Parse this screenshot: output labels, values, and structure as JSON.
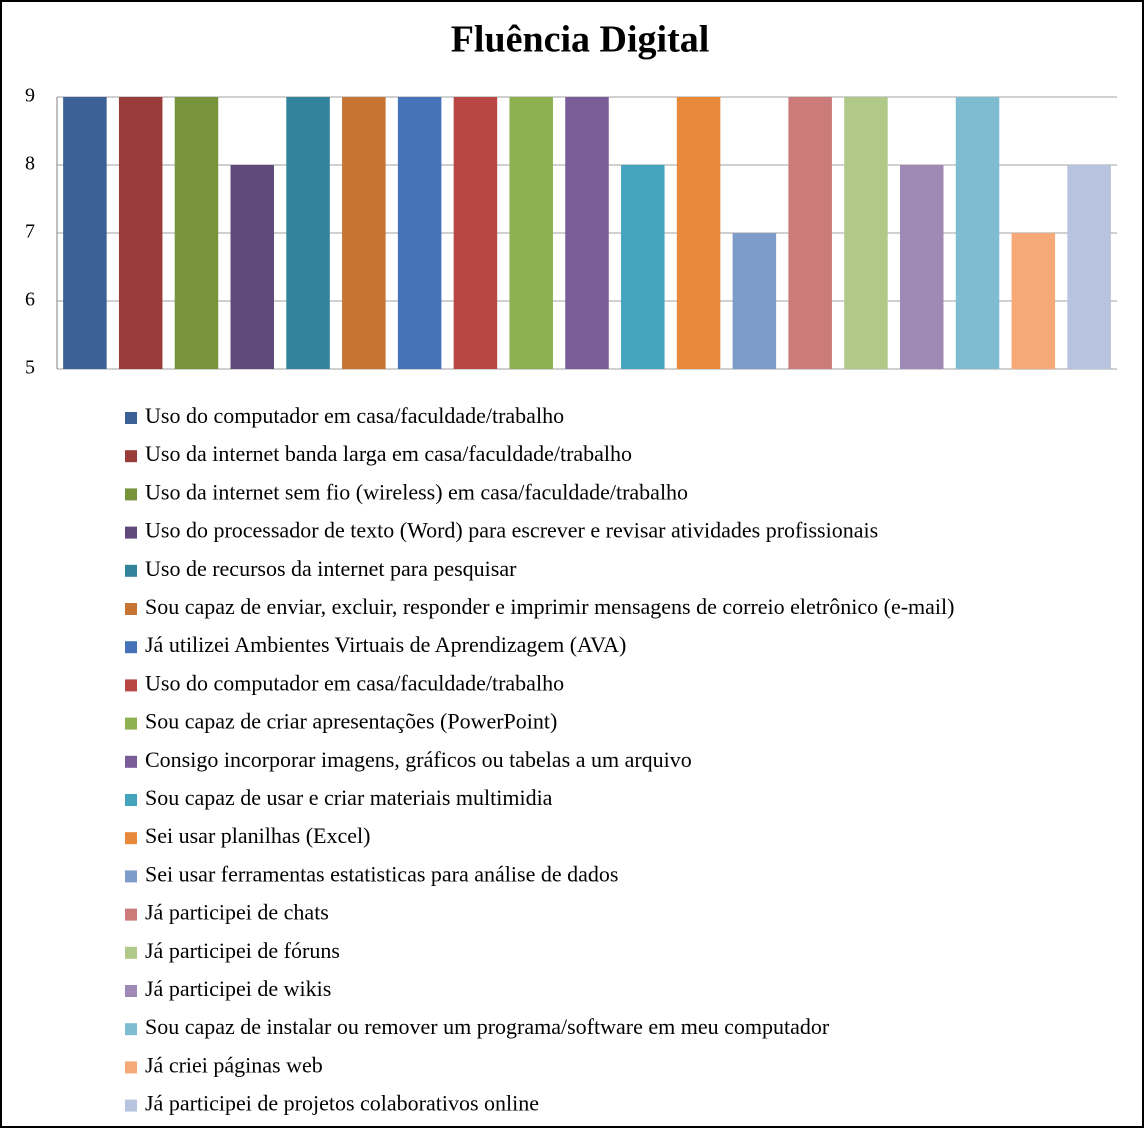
{
  "chart_data": {
    "type": "bar",
    "title": "Fluência Digital",
    "categories": [
      null
    ],
    "series": [
      {
        "name": "Uso do computador em casa/faculdade/trabalho",
        "color": "#3c6196",
        "values": [
          9
        ]
      },
      {
        "name": "Uso da internet banda larga em casa/faculdade/trabalho",
        "color": "#993c3a",
        "values": [
          9
        ]
      },
      {
        "name": "Uso da internet sem fio (wireless) em casa/faculdade/trabalho",
        "color": "#77933c",
        "values": [
          9
        ]
      },
      {
        "name": "Uso do processador de texto (Word) para  escrever e revisar atividades profissionais",
        "color": "#5f4a7b",
        "values": [
          8
        ]
      },
      {
        "name": "Uso de recursos da internet para pesquisar",
        "color": "#31849b",
        "values": [
          9
        ]
      },
      {
        "name": "Sou capaz de enviar, excluir, responder e imprimir mensagens de correio eletrônico (e-mail)",
        "color": "#c77332",
        "values": [
          9
        ]
      },
      {
        "name": "Já utilizei Ambientes Virtuais de Aprendizagem (AVA)",
        "color": "#4673b8",
        "values": [
          9
        ]
      },
      {
        "name": "Uso do computador em casa/faculdade/trabalho",
        "color": "#b84744",
        "values": [
          9
        ]
      },
      {
        "name": "Sou capaz de criar apresentações (PowerPoint)",
        "color": "#8db050",
        "values": [
          9
        ]
      },
      {
        "name": "Consigo incorporar imagens, gráficos ou tabelas a um arquivo",
        "color": "#7a5c98",
        "values": [
          9
        ]
      },
      {
        "name": "Sou capaz de usar e criar materiais multimidia",
        "color": "#44a3bd",
        "values": [
          8
        ]
      },
      {
        "name": "Sei usar planilhas (Excel)",
        "color": "#e8883a",
        "values": [
          9
        ]
      },
      {
        "name": "Sei usar ferramentas estatisticas para análise de dados",
        "color": "#7e9cc9",
        "values": [
          7
        ]
      },
      {
        "name": "Já participei de chats",
        "color": "#cb7b7a",
        "values": [
          9
        ]
      },
      {
        "name": "Já participei de fóruns",
        "color": "#b0c989",
        "values": [
          9
        ]
      },
      {
        "name": "Já participei de wikis",
        "color": "#9f8ab6",
        "values": [
          8
        ]
      },
      {
        "name": "Sou capaz de instalar ou remover um programa/software  em meu computador",
        "color": "#7dbcd1",
        "values": [
          9
        ]
      },
      {
        "name": "Já criei páginas web",
        "color": "#f6a977",
        "values": [
          7
        ]
      },
      {
        "name": "Já participei de projetos colaborativos online",
        "color": "#b7c3df",
        "values": [
          8
        ]
      }
    ],
    "ylim": [
      5,
      9
    ],
    "yticks": [
      5,
      6,
      7,
      8,
      9
    ],
    "grid": true,
    "legend": "bottom"
  }
}
